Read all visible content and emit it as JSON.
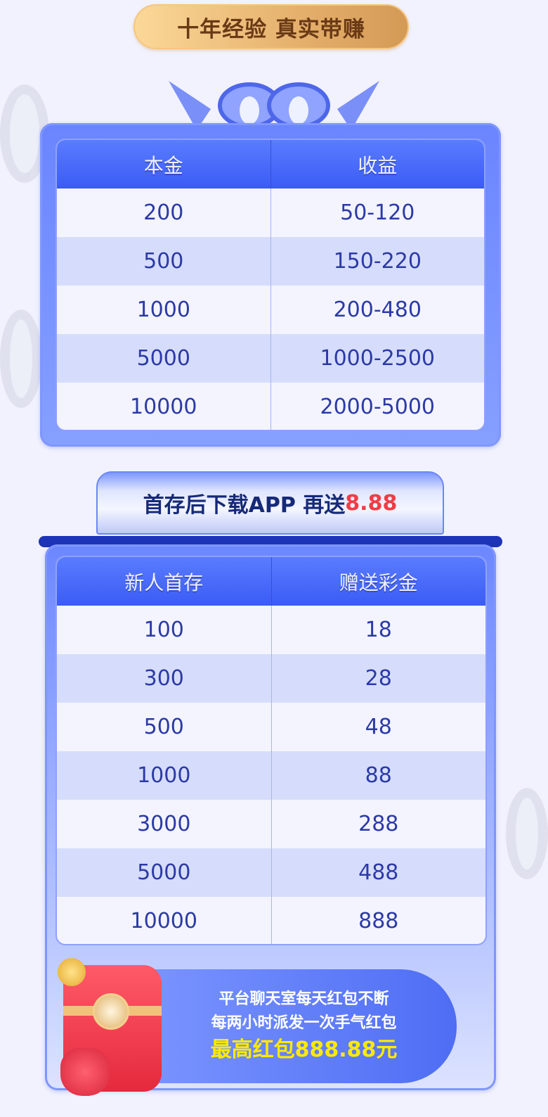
{
  "header": {
    "slogan": "十年经验 真实带赚"
  },
  "table1": {
    "headers": [
      "本金",
      "收益"
    ],
    "rows": [
      [
        "200",
        "50-120"
      ],
      [
        "500",
        "150-220"
      ],
      [
        "1000",
        "200-480"
      ],
      [
        "5000",
        "1000-2500"
      ],
      [
        "10000",
        "2000-5000"
      ]
    ]
  },
  "banner": {
    "text": "首存后下载APP 再送",
    "amount": "8.88"
  },
  "table2": {
    "headers": [
      "新人首存",
      "赠送彩金"
    ],
    "rows": [
      [
        "100",
        "18"
      ],
      [
        "300",
        "28"
      ],
      [
        "500",
        "48"
      ],
      [
        "1000",
        "88"
      ],
      [
        "3000",
        "288"
      ],
      [
        "5000",
        "488"
      ],
      [
        "10000",
        "888"
      ]
    ]
  },
  "promo": {
    "line1": "平台聊天室每天红包不断",
    "line2": "每两小时派发一次手气红包",
    "line3": "最高红包888.88元"
  },
  "colors": {
    "accent": "#3b5cf5",
    "gold": "#e5b06c",
    "highlight_red": "#f23c45",
    "highlight_yellow": "#ffea00"
  }
}
